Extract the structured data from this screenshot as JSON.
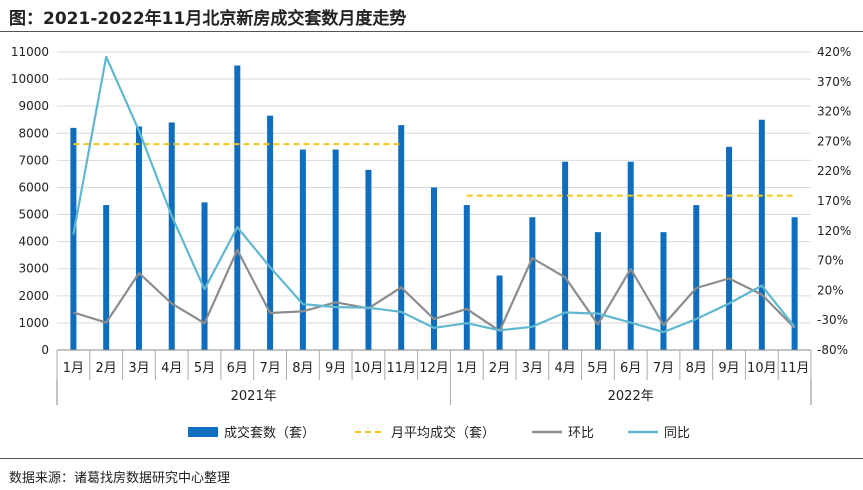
{
  "header": {
    "title": "图：2021-2022年11月北京新房成交套数月度走势"
  },
  "footer": {
    "source": "数据来源：诸葛找房数据研究中心整理"
  },
  "colors": {
    "bar": "#0e6dbd",
    "avg": "#f5c518",
    "mom": "#8c8c8c",
    "yoy": "#5fb8d0",
    "grid": "#d9d9d9"
  },
  "chart_data": {
    "type": "bar",
    "title": "",
    "categories": [
      "1月",
      "2月",
      "3月",
      "4月",
      "5月",
      "6月",
      "7月",
      "8月",
      "9月",
      "10月",
      "11月",
      "12月",
      "1月",
      "2月",
      "3月",
      "4月",
      "5月",
      "6月",
      "7月",
      "8月",
      "9月",
      "10月",
      "11月"
    ],
    "groups": [
      {
        "label": "2021年",
        "count": 12
      },
      {
        "label": "2022年",
        "count": 11
      }
    ],
    "ylim": [
      0,
      11000
    ],
    "y_ticks": [
      "0",
      "1000",
      "2000",
      "3000",
      "4000",
      "5000",
      "6000",
      "7000",
      "8000",
      "9000",
      "10000",
      "11000"
    ],
    "y2lim": [
      -80,
      420
    ],
    "y2_ticks": [
      "-80%",
      "-30%",
      "20%",
      "70%",
      "120%",
      "170%",
      "220%",
      "270%",
      "320%",
      "370%",
      "420%"
    ],
    "series": [
      {
        "name": "成交套数（套）",
        "type": "bar",
        "axis": "left",
        "values": [
          8200,
          5350,
          8250,
          8400,
          5450,
          10500,
          8650,
          7400,
          7400,
          6650,
          8300,
          6000,
          5350,
          2750,
          4900,
          6950,
          4350,
          6950,
          4350,
          5350,
          7500,
          8500,
          4900
        ]
      },
      {
        "name": "月平均成交（套）",
        "type": "avg",
        "axis": "left",
        "segments": [
          {
            "from": 0,
            "to": 10,
            "value": 7600
          },
          {
            "from": 12,
            "to": 22,
            "value": 5700
          }
        ]
      },
      {
        "name": "环比",
        "type": "line",
        "axis": "right",
        "values": [
          -17,
          -34,
          49,
          -2,
          -35,
          88,
          -18,
          -15,
          0,
          -10,
          25,
          -28,
          -11,
          -48,
          74,
          42,
          -37,
          56,
          -38,
          24,
          40,
          13,
          -43
        ]
      },
      {
        "name": "同比",
        "type": "line",
        "axis": "right",
        "values": [
          114,
          412,
          288,
          145,
          22,
          126,
          59,
          -3,
          -8,
          -9,
          -16,
          -43,
          -35,
          -47,
          -41,
          -17,
          -19,
          -34,
          -50,
          -28,
          -2,
          28,
          -41
        ]
      }
    ]
  }
}
